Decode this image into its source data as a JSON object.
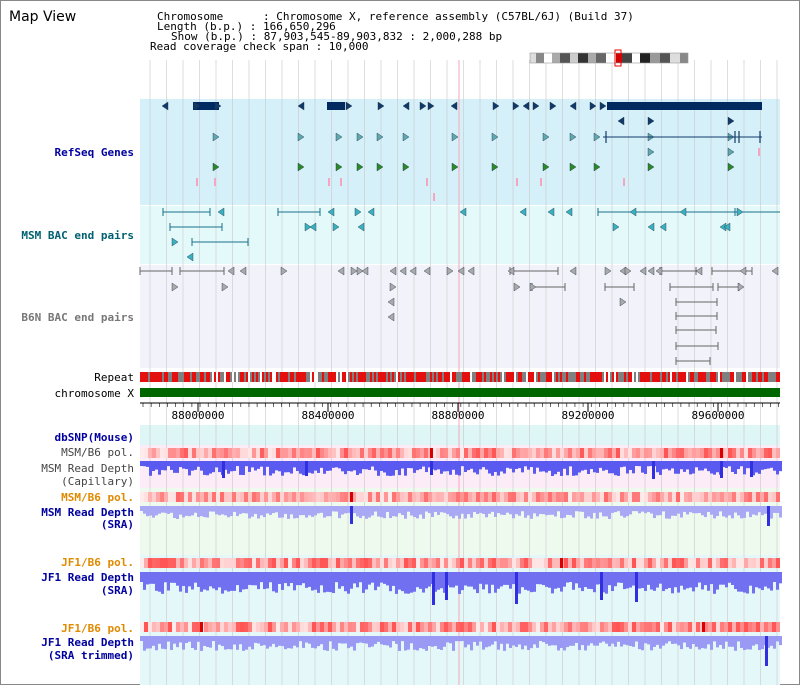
{
  "title": "Map View",
  "header": {
    "chromosome": "Chromosome      : Chromosome X, reference assembly (C57BL/6J) (Build 37)",
    "length": "Length (b.p.) : 166,650,296",
    "show": "Show (b.p.) : 87,903,545-89,903,832 : 2,000,288 bp",
    "coverage": "Read coverage check span : 10,000"
  },
  "tracks": {
    "refseq": "RefSeq Genes",
    "msm_bac": "MSM BAC end pairs",
    "b6n_bac": "B6N BAC end pairs",
    "repeat": "Repeat",
    "chromosome": "chromosome X",
    "dbsnp": "dbSNP(Mouse)",
    "msm_pol_1": "MSM/B6 pol.",
    "msm_depth_cap_1": "MSM Read Depth",
    "msm_depth_cap_2": "(Capillary)",
    "msm_pol_2": "MSM/B6 pol.",
    "msm_depth_sra_1": "MSM Read Depth",
    "msm_depth_sra_2": "(SRA)",
    "jf1_pol_1": "JF1/B6 pol.",
    "jf1_depth_sra_1": "JF1 Read Depth",
    "jf1_depth_sra_2": "(SRA)",
    "jf1_pol_2": "JF1/B6 pol.",
    "jf1_depth_trim_1": "JF1 Read Depth",
    "jf1_depth_trim_2": "(SRA trimmed)"
  },
  "axis": {
    "ticks": [
      "88000000",
      "88400000",
      "88800000",
      "89200000",
      "89600000"
    ]
  },
  "colors": {
    "refseq_bg": "#d6f0fa",
    "msm_bac_bg": "#e4fafa",
    "b6n_bac_bg": "#f2f2fa",
    "gene_dark": "#002a60",
    "repeat_red": "#e41010",
    "repeat_gray": "#808080",
    "chromosome_green": "#006600",
    "depth_blue": "#4444ee",
    "pol_red": "#f07070",
    "label_blue": "#0000a0",
    "label_orange": "#e08a00",
    "label_teal": "#006070"
  }
}
